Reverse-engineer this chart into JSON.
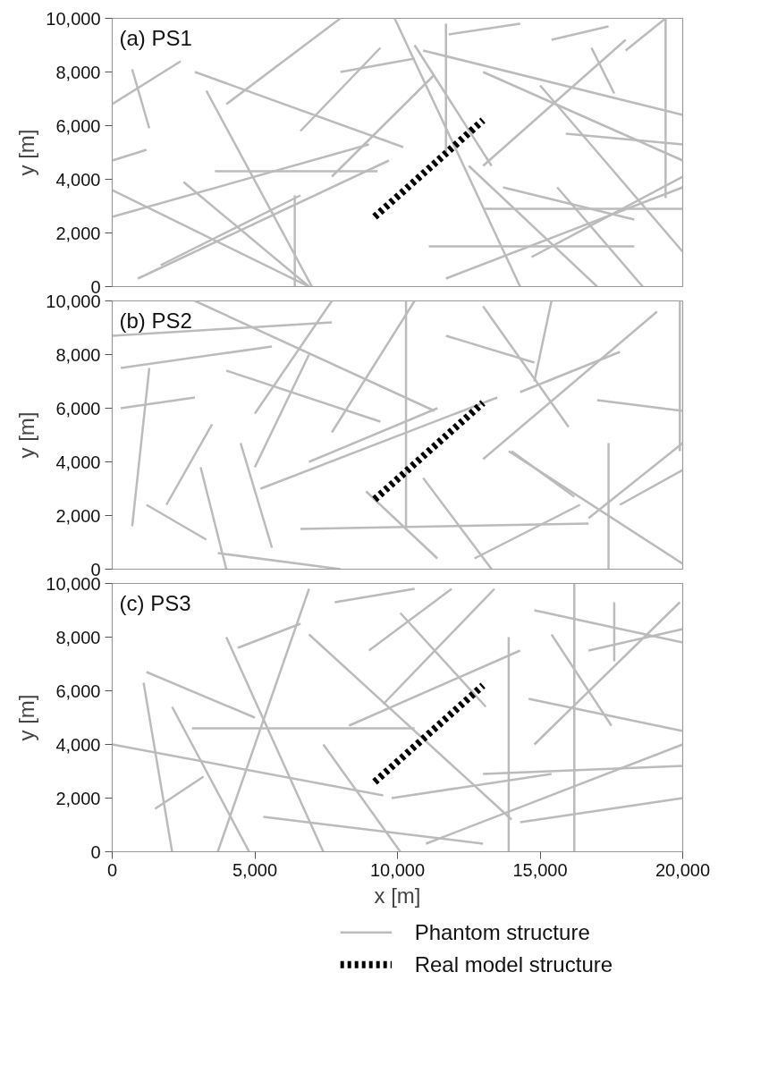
{
  "chart_data": [
    {
      "type": "line",
      "title": "(a) PS1",
      "ylabel": "y [m]",
      "xlim": [
        0,
        20000
      ],
      "ylim": [
        0,
        10000
      ],
      "yticks": [
        {
          "value": 0,
          "label": "0"
        },
        {
          "value": 2000,
          "label": "2,000"
        },
        {
          "value": 4000,
          "label": "4,000"
        },
        {
          "value": 6000,
          "label": "6,000"
        },
        {
          "value": 8000,
          "label": "8,000"
        },
        {
          "value": 10000,
          "label": "10,000"
        }
      ],
      "tick_labels": "y",
      "grid": false,
      "legend": false,
      "line_style": "solid",
      "series": [
        {
          "color": "#bbbbbb",
          "x": [
            0,
            2400
          ],
          "values": [
            6800,
            8400
          ]
        },
        {
          "color": "#bbbbbb",
          "x": [
            700,
            1300
          ],
          "values": [
            8100,
            5900
          ]
        },
        {
          "color": "#bbbbbb",
          "x": [
            3300,
            7000
          ],
          "values": [
            7300,
            0
          ]
        },
        {
          "color": "#bbbbbb",
          "x": [
            2900,
            10200
          ],
          "values": [
            8000,
            5200
          ]
        },
        {
          "color": "#bbbbbb",
          "x": [
            4000,
            8000
          ],
          "values": [
            6800,
            10000
          ]
        },
        {
          "color": "#bbbbbb",
          "x": [
            3600,
            9300
          ],
          "values": [
            4300,
            4300
          ]
        },
        {
          "color": "#bbbbbb",
          "x": [
            0,
            6900
          ],
          "values": [
            3600,
            0
          ]
        },
        {
          "color": "#bbbbbb",
          "x": [
            2500,
            6900
          ],
          "values": [
            3900,
            0
          ]
        },
        {
          "color": "#bbbbbb",
          "x": [
            0,
            9000
          ],
          "values": [
            2600,
            5300
          ]
        },
        {
          "color": "#bbbbbb",
          "x": [
            900,
            9700
          ],
          "values": [
            300,
            4700
          ]
        },
        {
          "color": "#bbbbbb",
          "x": [
            1700,
            6600
          ],
          "values": [
            800,
            3400
          ]
        },
        {
          "color": "#bbbbbb",
          "x": [
            6400,
            6400
          ],
          "values": [
            3400,
            0
          ]
        },
        {
          "color": "#bbbbbb",
          "x": [
            6600,
            9400
          ],
          "values": [
            5800,
            8900
          ]
        },
        {
          "color": "#bbbbbb",
          "x": [
            8000,
            10600
          ],
          "values": [
            8000,
            8500
          ]
        },
        {
          "color": "#bbbbbb",
          "x": [
            9900,
            14300
          ],
          "values": [
            10000,
            0
          ]
        },
        {
          "color": "#bbbbbb",
          "x": [
            10600,
            13300
          ],
          "values": [
            9000,
            4500
          ]
        },
        {
          "color": "#bbbbbb",
          "x": [
            7700,
            11300
          ],
          "values": [
            4100,
            7900
          ]
        },
        {
          "color": "#bbbbbb",
          "x": [
            11700,
            11700
          ],
          "values": [
            9800,
            5000
          ]
        },
        {
          "color": "#bbbbbb",
          "x": [
            11800,
            14300
          ],
          "values": [
            9400,
            9800
          ]
        },
        {
          "color": "#bbbbbb",
          "x": [
            10900,
            20000
          ],
          "values": [
            8800,
            6400
          ]
        },
        {
          "color": "#bbbbbb",
          "x": [
            13000,
            20000
          ],
          "values": [
            8000,
            4700
          ]
        },
        {
          "color": "#bbbbbb",
          "x": [
            12500,
            17000
          ],
          "values": [
            4500,
            0
          ]
        },
        {
          "color": "#bbbbbb",
          "x": [
            18000,
            19400
          ],
          "values": [
            8800,
            10000
          ]
        },
        {
          "color": "#bbbbbb",
          "x": [
            19400,
            19400
          ],
          "values": [
            10000,
            3300
          ]
        },
        {
          "color": "#bbbbbb",
          "x": [
            13000,
            18000
          ],
          "values": [
            4500,
            9200
          ]
        },
        {
          "color": "#bbbbbb",
          "x": [
            15000,
            20000
          ],
          "values": [
            7500,
            1300
          ]
        },
        {
          "color": "#bbbbbb",
          "x": [
            14700,
            20000
          ],
          "values": [
            1100,
            4100
          ]
        },
        {
          "color": "#bbbbbb",
          "x": [
            11100,
            18300
          ],
          "values": [
            1500,
            1500
          ]
        },
        {
          "color": "#bbbbbb",
          "x": [
            13700,
            18300
          ],
          "values": [
            3700,
            2500
          ]
        },
        {
          "color": "#bbbbbb",
          "x": [
            11700,
            20000
          ],
          "values": [
            300,
            3700
          ]
        },
        {
          "color": "#bbbbbb",
          "x": [
            13000,
            20000
          ],
          "values": [
            2900,
            2900
          ]
        },
        {
          "color": "#bbbbbb",
          "x": [
            15900,
            20000
          ],
          "values": [
            5700,
            5300
          ]
        },
        {
          "color": "#bbbbbb",
          "x": [
            15600,
            18600
          ],
          "values": [
            3700,
            0
          ]
        },
        {
          "color": "#bbbbbb",
          "x": [
            15400,
            17400
          ],
          "values": [
            9200,
            9700
          ]
        },
        {
          "color": "#bbbbbb",
          "x": [
            16800,
            17600
          ],
          "values": [
            8900,
            7200
          ]
        },
        {
          "color": "#bbbbbb",
          "x": [
            0,
            1200
          ],
          "values": [
            4700,
            5100
          ]
        },
        {
          "color": "#000000",
          "line_style": "dotted",
          "x": [
            9200,
            13000
          ],
          "values": [
            2600,
            6200
          ]
        }
      ]
    },
    {
      "type": "line",
      "title": "(b) PS2",
      "ylabel": "y [m]",
      "xlim": [
        0,
        20000
      ],
      "ylim": [
        0,
        10000
      ],
      "yticks": [
        {
          "value": 0,
          "label": "0"
        },
        {
          "value": 2000,
          "label": "2,000"
        },
        {
          "value": 4000,
          "label": "4,000"
        },
        {
          "value": 6000,
          "label": "6,000"
        },
        {
          "value": 8000,
          "label": "8,000"
        },
        {
          "value": 10000,
          "label": "10,000"
        }
      ],
      "tick_labels": "y",
      "grid": false,
      "legend": false,
      "line_style": "solid",
      "series": [
        {
          "color": "#bbbbbb",
          "x": [
            300,
            5600
          ],
          "values": [
            7500,
            8300
          ]
        },
        {
          "color": "#bbbbbb",
          "x": [
            0,
            7700
          ],
          "values": [
            8700,
            9200
          ]
        },
        {
          "color": "#bbbbbb",
          "x": [
            2900,
            11300
          ],
          "values": [
            10000,
            5900
          ]
        },
        {
          "color": "#bbbbbb",
          "x": [
            700,
            1300
          ],
          "values": [
            1600,
            7500
          ]
        },
        {
          "color": "#bbbbbb",
          "x": [
            300,
            2900
          ],
          "values": [
            6000,
            6400
          ]
        },
        {
          "color": "#bbbbbb",
          "x": [
            1900,
            3500
          ],
          "values": [
            2400,
            5400
          ]
        },
        {
          "color": "#bbbbbb",
          "x": [
            1200,
            3300
          ],
          "values": [
            2400,
            1100
          ]
        },
        {
          "color": "#bbbbbb",
          "x": [
            3100,
            4000
          ],
          "values": [
            3800,
            0
          ]
        },
        {
          "color": "#bbbbbb",
          "x": [
            4500,
            5600
          ],
          "values": [
            4700,
            800
          ]
        },
        {
          "color": "#bbbbbb",
          "x": [
            4000,
            9400
          ],
          "values": [
            7400,
            5500
          ]
        },
        {
          "color": "#bbbbbb",
          "x": [
            5000,
            7700
          ],
          "values": [
            5800,
            10000
          ]
        },
        {
          "color": "#bbbbbb",
          "x": [
            5000,
            6900
          ],
          "values": [
            3800,
            8000
          ]
        },
        {
          "color": "#bbbbbb",
          "x": [
            5200,
            13500
          ],
          "values": [
            3000,
            6400
          ]
        },
        {
          "color": "#bbbbbb",
          "x": [
            6900,
            11400
          ],
          "values": [
            4000,
            6000
          ]
        },
        {
          "color": "#bbbbbb",
          "x": [
            6600,
            16700
          ],
          "values": [
            1500,
            1700
          ]
        },
        {
          "color": "#bbbbbb",
          "x": [
            8900,
            11400
          ],
          "values": [
            2900,
            400
          ]
        },
        {
          "color": "#bbbbbb",
          "x": [
            7700,
            10600
          ],
          "values": [
            5100,
            10000
          ]
        },
        {
          "color": "#bbbbbb",
          "x": [
            10300,
            10300
          ],
          "values": [
            10000,
            1600
          ]
        },
        {
          "color": "#bbbbbb",
          "x": [
            10900,
            13300
          ],
          "values": [
            3400,
            0
          ]
        },
        {
          "color": "#bbbbbb",
          "x": [
            12700,
            16400
          ],
          "values": [
            400,
            2400
          ]
        },
        {
          "color": "#bbbbbb",
          "x": [
            13000,
            19100
          ],
          "values": [
            4100,
            9600
          ]
        },
        {
          "color": "#bbbbbb",
          "x": [
            11700,
            14800
          ],
          "values": [
            8700,
            7700
          ]
        },
        {
          "color": "#bbbbbb",
          "x": [
            13900,
            20000
          ],
          "values": [
            4400,
            200
          ]
        },
        {
          "color": "#bbbbbb",
          "x": [
            14300,
            17800
          ],
          "values": [
            6600,
            8100
          ]
        },
        {
          "color": "#bbbbbb",
          "x": [
            17400,
            17400
          ],
          "values": [
            4700,
            0
          ]
        },
        {
          "color": "#bbbbbb",
          "x": [
            16700,
            20000
          ],
          "values": [
            1900,
            4700
          ]
        },
        {
          "color": "#bbbbbb",
          "x": [
            17800,
            20000
          ],
          "values": [
            2400,
            3700
          ]
        },
        {
          "color": "#bbbbbb",
          "x": [
            17000,
            20000
          ],
          "values": [
            6300,
            5900
          ]
        },
        {
          "color": "#bbbbbb",
          "x": [
            19900,
            19900
          ],
          "values": [
            10000,
            4400
          ]
        },
        {
          "color": "#bbbbbb",
          "x": [
            15400,
            14800
          ],
          "values": [
            10000,
            7000
          ]
        },
        {
          "color": "#bbbbbb",
          "x": [
            13000,
            16000
          ],
          "values": [
            9800,
            5300
          ]
        },
        {
          "color": "#bbbbbb",
          "x": [
            14000,
            16200
          ],
          "values": [
            4400,
            2700
          ]
        },
        {
          "color": "#bbbbbb",
          "x": [
            3700,
            8000
          ],
          "values": [
            600,
            0
          ]
        },
        {
          "color": "#000000",
          "line_style": "dotted",
          "x": [
            9200,
            13000
          ],
          "values": [
            2600,
            6200
          ]
        }
      ]
    },
    {
      "type": "line",
      "title": "(c) PS3",
      "xlabel": "x [m]",
      "ylabel": "y [m]",
      "xlim": [
        0,
        20000
      ],
      "ylim": [
        0,
        10000
      ],
      "xticks": [
        {
          "value": 0,
          "label": "0"
        },
        {
          "value": 5000,
          "label": "5,000"
        },
        {
          "value": 10000,
          "label": "10,000"
        },
        {
          "value": 15000,
          "label": "15,000"
        },
        {
          "value": 20000,
          "label": "20,000"
        }
      ],
      "yticks": [
        {
          "value": 0,
          "label": "0"
        },
        {
          "value": 2000,
          "label": "2,000"
        },
        {
          "value": 4000,
          "label": "4,000"
        },
        {
          "value": 6000,
          "label": "6,000"
        },
        {
          "value": 8000,
          "label": "8,000"
        },
        {
          "value": 10000,
          "label": "10,000"
        }
      ],
      "grid": false,
      "legend": "bottom",
      "line_style": "solid",
      "series": [
        {
          "name": "Phantom structure",
          "color": "#bbbbbb",
          "x": [
            1200,
            5000
          ],
          "values": [
            6700,
            5000
          ]
        },
        {
          "color": "#bbbbbb",
          "x": [
            4000,
            7400
          ],
          "values": [
            8000,
            0
          ]
        },
        {
          "color": "#bbbbbb",
          "x": [
            4400,
            6600
          ],
          "values": [
            7600,
            8500
          ]
        },
        {
          "color": "#bbbbbb",
          "x": [
            3700,
            6900
          ],
          "values": [
            0,
            9800
          ]
        },
        {
          "color": "#bbbbbb",
          "x": [
            6900,
            14000
          ],
          "values": [
            8100,
            1200
          ]
        },
        {
          "color": "#bbbbbb",
          "x": [
            2800,
            10600
          ],
          "values": [
            4600,
            4600
          ]
        },
        {
          "color": "#bbbbbb",
          "x": [
            1100,
            2100
          ],
          "values": [
            6300,
            0
          ]
        },
        {
          "color": "#bbbbbb",
          "x": [
            1500,
            3200
          ],
          "values": [
            1600,
            2800
          ]
        },
        {
          "color": "#bbbbbb",
          "x": [
            2100,
            4800
          ],
          "values": [
            5400,
            0
          ]
        },
        {
          "color": "#bbbbbb",
          "x": [
            0,
            9500
          ],
          "values": [
            4000,
            2100
          ]
        },
        {
          "color": "#bbbbbb",
          "x": [
            9000,
            11900
          ],
          "values": [
            7500,
            9800
          ]
        },
        {
          "color": "#bbbbbb",
          "x": [
            7800,
            10600
          ],
          "values": [
            9300,
            9800
          ]
        },
        {
          "color": "#bbbbbb",
          "x": [
            7400,
            10100
          ],
          "values": [
            4000,
            0
          ]
        },
        {
          "color": "#bbbbbb",
          "x": [
            8300,
            14300
          ],
          "values": [
            4700,
            7500
          ]
        },
        {
          "color": "#bbbbbb",
          "x": [
            9500,
            13400
          ],
          "values": [
            5500,
            9800
          ]
        },
        {
          "color": "#bbbbbb",
          "x": [
            9800,
            15400
          ],
          "values": [
            2000,
            2900
          ]
        },
        {
          "color": "#bbbbbb",
          "x": [
            10100,
            13100
          ],
          "values": [
            8900,
            5400
          ]
        },
        {
          "color": "#bbbbbb",
          "x": [
            13900,
            13900
          ],
          "values": [
            8000,
            0
          ]
        },
        {
          "color": "#bbbbbb",
          "x": [
            16200,
            16200
          ],
          "values": [
            10000,
            0
          ]
        },
        {
          "color": "#bbbbbb",
          "x": [
            14800,
            19900
          ],
          "values": [
            4000,
            9300
          ]
        },
        {
          "color": "#bbbbbb",
          "x": [
            14300,
            20000
          ],
          "values": [
            1100,
            2000
          ]
        },
        {
          "color": "#bbbbbb",
          "x": [
            14800,
            20000
          ],
          "values": [
            9000,
            7800
          ]
        },
        {
          "color": "#bbbbbb",
          "x": [
            14600,
            20000
          ],
          "values": [
            5700,
            4500
          ]
        },
        {
          "color": "#bbbbbb",
          "x": [
            15400,
            17500
          ],
          "values": [
            8100,
            4700
          ]
        },
        {
          "color": "#bbbbbb",
          "x": [
            13000,
            20000
          ],
          "values": [
            2900,
            3200
          ]
        },
        {
          "color": "#bbbbbb",
          "x": [
            11000,
            20000
          ],
          "values": [
            300,
            4000
          ]
        },
        {
          "color": "#bbbbbb",
          "x": [
            17600,
            17600
          ],
          "values": [
            9300,
            7100
          ]
        },
        {
          "color": "#bbbbbb",
          "x": [
            16700,
            20000
          ],
          "values": [
            7500,
            8300
          ]
        },
        {
          "color": "#bbbbbb",
          "x": [
            5300,
            13000
          ],
          "values": [
            1300,
            300
          ]
        },
        {
          "name": "Real model structure",
          "color": "#000000",
          "line_style": "dotted",
          "x": [
            9200,
            13000
          ],
          "values": [
            2600,
            6200
          ]
        }
      ]
    }
  ]
}
